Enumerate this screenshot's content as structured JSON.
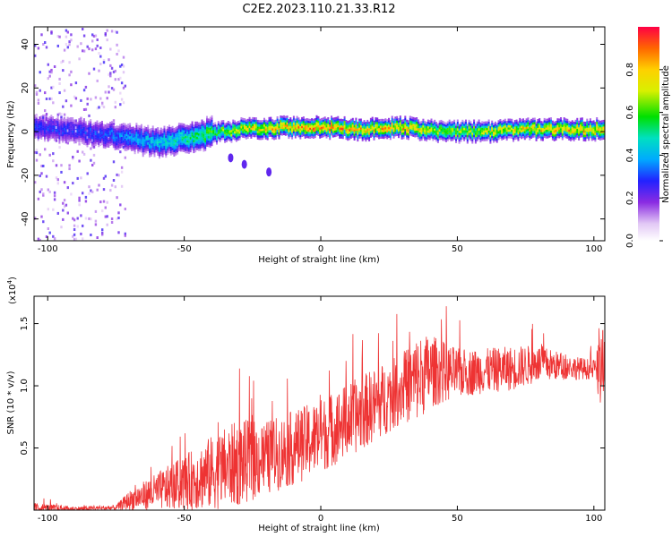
{
  "title": "C2E2.2023.110.21.33.R12",
  "chart_data": [
    {
      "type": "heatmap",
      "xlabel": "Height of straight line (km)",
      "ylabel": "Frequency (Hz)",
      "xlim": [
        -105,
        104
      ],
      "ylim": [
        -50,
        48
      ],
      "x_ticks": [
        -100,
        -50,
        0,
        50,
        100
      ],
      "y_ticks": [
        -40,
        -20,
        0,
        20,
        40
      ],
      "colorbar": {
        "label": "Normalized spectral amplitude",
        "range": [
          0,
          1
        ],
        "ticks": [
          0.0,
          0.2,
          0.4,
          0.6,
          0.8
        ],
        "colormap": "rainbow-violet-to-red"
      },
      "ridge": {
        "description_points_x": [
          -105,
          -90,
          -75,
          -60,
          -45,
          -30,
          -15,
          0,
          15,
          30,
          45,
          60,
          75,
          90,
          104
        ],
        "frequency_hz": [
          2,
          0,
          -2,
          -5,
          -2,
          1,
          2,
          2,
          1,
          2,
          0,
          0,
          1,
          1,
          1
        ],
        "peak_amplitude": [
          0.3,
          0.3,
          0.35,
          0.45,
          0.55,
          0.75,
          0.85,
          0.9,
          0.85,
          0.85,
          0.7,
          0.75,
          0.8,
          0.85,
          0.85
        ]
      },
      "grid": false
    },
    {
      "type": "line",
      "xlabel": "Height of straight line (km)",
      "ylabel": "SNR (10 * v/v)",
      "y_multiplier": "(x10",
      "y_multiplier_exp": "4",
      "y_multiplier_close": ")",
      "xlim": [
        -105,
        104
      ],
      "ylim": [
        0,
        1.72
      ],
      "x_ticks": [
        -100,
        -50,
        0,
        50,
        100
      ],
      "y_ticks": [
        0.5,
        1.0,
        1.5
      ],
      "y_tick_labels": [
        "0.5",
        "1.0",
        "1.5"
      ],
      "color": "#ee3333",
      "envelope": {
        "x": [
          -105,
          -90,
          -75,
          -70,
          -60,
          -50,
          -40,
          -30,
          -20,
          -10,
          0,
          10,
          20,
          30,
          35,
          40,
          50,
          60,
          70,
          80,
          90,
          100,
          104
        ],
        "mean": [
          0.02,
          0.01,
          0.02,
          0.08,
          0.15,
          0.22,
          0.3,
          0.38,
          0.42,
          0.5,
          0.6,
          0.72,
          0.85,
          0.98,
          1.05,
          1.12,
          1.1,
          1.12,
          1.14,
          1.18,
          1.15,
          1.13,
          1.1
        ],
        "spread": [
          0.04,
          0.02,
          0.02,
          0.08,
          0.15,
          0.22,
          0.3,
          0.35,
          0.3,
          0.3,
          0.3,
          0.3,
          0.3,
          0.28,
          0.35,
          0.3,
          0.2,
          0.18,
          0.18,
          0.15,
          0.1,
          0.08,
          0.4
        ]
      },
      "grid": false
    }
  ]
}
